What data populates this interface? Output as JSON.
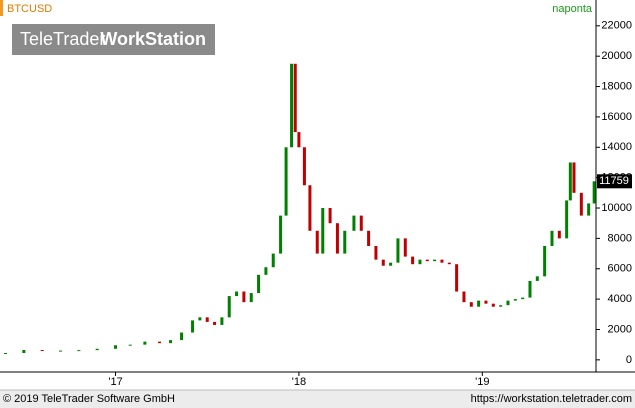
{
  "chart_data": {
    "type": "candlestick",
    "symbol": "BTCUSD",
    "interval": "naponta",
    "watermark": [
      "TeleTrader",
      "WorkStation"
    ],
    "footer_left": "© 2019 TeleTrader Software GmbH",
    "footer_right": "https://workstation.teletrader.com",
    "up_color": "#008000",
    "down_color": "#c00000",
    "x": [
      2016.4,
      2016.5,
      2016.6,
      2016.7,
      2016.8,
      2016.9,
      2017.0,
      2017.08,
      2017.16,
      2017.24,
      2017.3,
      2017.36,
      2017.42,
      2017.46,
      2017.5,
      2017.54,
      2017.58,
      2017.62,
      2017.66,
      2017.7,
      2017.74,
      2017.78,
      2017.82,
      2017.86,
      2017.9,
      2017.93,
      2017.96,
      2017.98,
      2018.0,
      2018.03,
      2018.06,
      2018.1,
      2018.13,
      2018.17,
      2018.21,
      2018.25,
      2018.3,
      2018.34,
      2018.38,
      2018.42,
      2018.46,
      2018.5,
      2018.54,
      2018.58,
      2018.62,
      2018.66,
      2018.7,
      2018.74,
      2018.78,
      2018.82,
      2018.86,
      2018.9,
      2018.94,
      2018.98,
      2019.02,
      2019.06,
      2019.1,
      2019.14,
      2019.18,
      2019.22,
      2019.26,
      2019.3,
      2019.34,
      2019.38,
      2019.42,
      2019.46,
      2019.48,
      2019.5,
      2019.54,
      2019.58,
      2019.61
    ],
    "values": [
      450,
      650,
      600,
      610,
      640,
      730,
      960,
      1000,
      1200,
      1100,
      1300,
      1800,
      2600,
      2800,
      2500,
      2300,
      2800,
      4200,
      4500,
      3800,
      4400,
      5600,
      6100,
      7000,
      9500,
      14000,
      19500,
      15000,
      14000,
      11500,
      8500,
      7000,
      10000,
      9000,
      7000,
      8500,
      9500,
      8500,
      7500,
      6600,
      6200,
      6400,
      8000,
      6800,
      6300,
      6600,
      6500,
      6600,
      6400,
      6300,
      4500,
      3800,
      3500,
      3900,
      3700,
      3500,
      3600,
      3900,
      4000,
      4100,
      5200,
      5500,
      7500,
      8500,
      8000,
      10500,
      13000,
      11000,
      9500,
      10300,
      11759
    ],
    "last_value": 11759,
    "xlim": [
      2016.37,
      2019.62
    ],
    "xticks": [
      {
        "value": 2017,
        "label": "'17"
      },
      {
        "value": 2018,
        "label": "'18"
      },
      {
        "value": 2019,
        "label": "'19"
      }
    ],
    "ylim": [
      -800,
      23700
    ],
    "yticks": [
      0,
      2000,
      4000,
      6000,
      8000,
      10000,
      12000,
      14000,
      16000,
      18000,
      20000,
      22000
    ]
  }
}
